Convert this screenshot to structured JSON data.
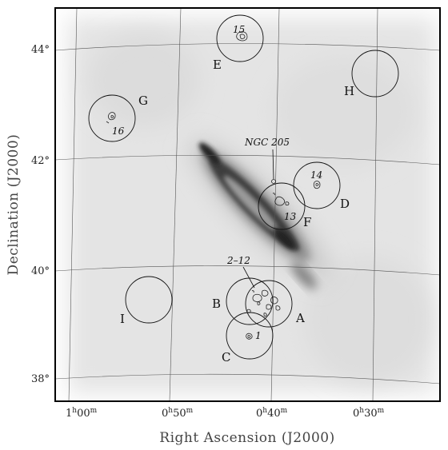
{
  "axes": {
    "xlabel": "Right Ascension (J2000)",
    "ylabel": "Declination (J2000)",
    "x_ticks": [
      {
        "label": "1h00m",
        "h": "1",
        "m": "00"
      },
      {
        "label": "0h50m",
        "h": "0",
        "m": "50"
      },
      {
        "label": "0h40m",
        "h": "0",
        "m": "40"
      },
      {
        "label": "0h30m",
        "h": "0",
        "m": "30"
      }
    ],
    "y_ticks": [
      "44°",
      "42°",
      "40°",
      "38°"
    ]
  },
  "fields": [
    {
      "id": "A",
      "label": "A"
    },
    {
      "id": "B",
      "label": "B"
    },
    {
      "id": "C",
      "label": "C"
    },
    {
      "id": "D",
      "label": "D"
    },
    {
      "id": "E",
      "label": "E"
    },
    {
      "id": "F",
      "label": "F"
    },
    {
      "id": "G",
      "label": "G"
    },
    {
      "id": "H",
      "label": "H"
    },
    {
      "id": "I",
      "label": "I"
    }
  ],
  "source_numbers": [
    "1",
    "2–12",
    "13",
    "14",
    "15",
    "16"
  ],
  "annotations": {
    "ngc205": "NGC 205"
  },
  "colors": {
    "frame": "#000000",
    "grid": "#555555",
    "galaxy": "#1a1a1a",
    "background": "#ffffff"
  }
}
